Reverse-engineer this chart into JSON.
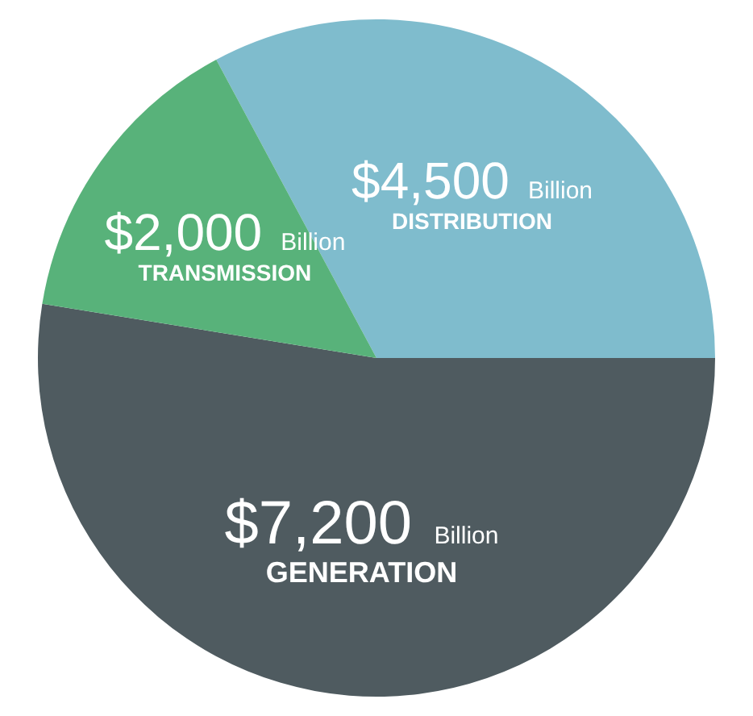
{
  "chart_data": {
    "type": "pie",
    "categories": [
      "DISTRIBUTION",
      "GENERATION",
      "TRANSMISSION"
    ],
    "values": [
      4500,
      7200,
      2000
    ],
    "colors": [
      "#7fbccd",
      "#4f5b60",
      "#58b27a"
    ],
    "value_labels": [
      "$4,500 Billion",
      "$7,200 Billion",
      "$2,000 Billion"
    ],
    "legend": false
  }
}
